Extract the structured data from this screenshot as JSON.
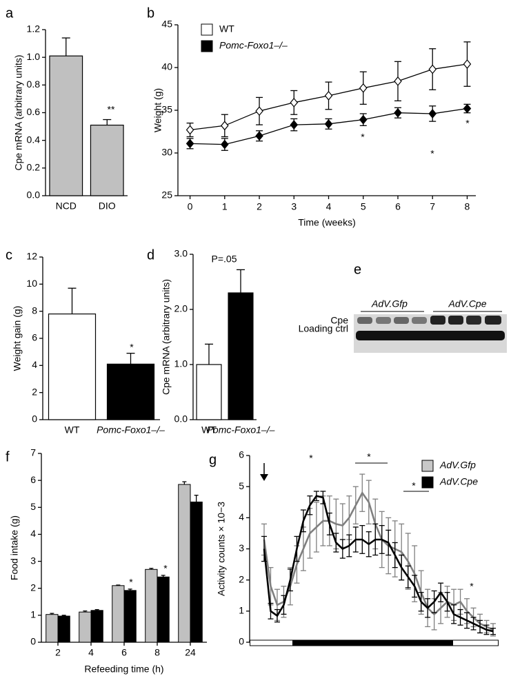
{
  "chart_data": [
    {
      "panel": "a",
      "type": "bar",
      "ylabel": "Cpe mRNA (arbitrary units)",
      "categories": [
        "NCD",
        "DIO"
      ],
      "values": [
        1.01,
        0.51
      ],
      "errors": [
        0.13,
        0.04
      ],
      "color": "#c0c0c0",
      "ylim": [
        0,
        1.2
      ],
      "yticks": [
        {
          "value": 0,
          "label": "0.0"
        },
        0.2,
        0.4,
        0.6,
        0.8,
        {
          "value": 1,
          "label": "1.0"
        },
        1.2
      ],
      "annotations": [
        "**"
      ]
    },
    {
      "panel": "b",
      "type": "line",
      "xlabel": "Time (weeks)",
      "ylabel": "Weight (g)",
      "x": [
        0,
        1,
        2,
        3,
        4,
        5,
        6,
        7,
        8
      ],
      "series": [
        {
          "name": "WT",
          "color": "#ffffff",
          "values": [
            32.7,
            33.2,
            34.9,
            35.9,
            36.7,
            37.6,
            38.4,
            39.8,
            40.4
          ],
          "errors": [
            0.8,
            1.3,
            1.6,
            1.4,
            1.6,
            1.9,
            2.3,
            2.4,
            2.6
          ]
        },
        {
          "name": "Pomc-Foxo1–/–",
          "color": "#000000",
          "values": [
            31.1,
            31.0,
            32.0,
            33.3,
            33.4,
            33.9,
            34.7,
            34.6,
            35.2
          ],
          "errors": [
            0.6,
            0.7,
            0.6,
            0.7,
            0.6,
            0.7,
            0.6,
            0.9,
            0.5
          ]
        }
      ],
      "xlim": [
        -0.35,
        8.25
      ],
      "xticks": [
        0,
        1,
        2,
        3,
        4,
        5,
        6,
        7,
        8
      ],
      "ylim": [
        25,
        45
      ],
      "yticks": [
        25,
        30,
        35,
        40,
        45
      ],
      "legend": "top-left",
      "annotations": [
        "*",
        "*",
        "*"
      ]
    },
    {
      "panel": "c",
      "type": "bar",
      "ylabel": "Weight gain (g)",
      "categories": [
        "WT",
        "Pomc-Foxo1–/–"
      ],
      "values": [
        7.8,
        4.1
      ],
      "errors": [
        1.9,
        0.8
      ],
      "colors": [
        "#ffffff",
        "#000000"
      ],
      "ylim": [
        0,
        12
      ],
      "yticks": [
        0,
        2,
        4,
        6,
        8,
        10,
        12
      ],
      "annotations": [
        "*"
      ]
    },
    {
      "panel": "d",
      "type": "bar",
      "ylabel": "Cpe mRNA  (arbitrary units)",
      "categories": [
        "WT",
        "Pomc-Foxo1–/–"
      ],
      "values": [
        1.0,
        2.3
      ],
      "errors": [
        0.37,
        0.42
      ],
      "colors": [
        "#ffffff",
        "#000000"
      ],
      "ylim": [
        0,
        3
      ],
      "yticks": [
        {
          "value": 0,
          "label": "0.0"
        },
        {
          "value": 1,
          "label": "1.0"
        },
        {
          "value": 2,
          "label": "2.0"
        },
        {
          "value": 3,
          "label": "3.0"
        }
      ],
      "annotations": [
        "P=.05"
      ]
    },
    {
      "panel": "f",
      "type": "bar",
      "xlabel": "Refeeding time (h)",
      "ylabel": "Food intake (g)",
      "categories": [
        "2",
        "4",
        "6",
        "8",
        "24"
      ],
      "series": [
        {
          "color": "#c0c0c0",
          "values": [
            1.03,
            1.12,
            2.1,
            2.7,
            5.85
          ],
          "errors": [
            0.04,
            0.04,
            0.02,
            0.04,
            0.1
          ]
        },
        {
          "color": "#000000",
          "values": [
            0.97,
            1.18,
            1.92,
            2.42,
            5.2
          ],
          "errors": [
            0.03,
            0.03,
            0.05,
            0.06,
            0.25
          ]
        }
      ],
      "ylim": [
        0,
        7
      ],
      "yticks": [
        0,
        1,
        2,
        3,
        4,
        5,
        6,
        7
      ],
      "annotations": [
        "*",
        "*"
      ]
    },
    {
      "panel": "g",
      "type": "line",
      "ylabel": "Activity counts × 10−3",
      "categories": [
        null,
        null,
        null,
        null,
        null,
        null,
        null,
        null,
        null,
        null,
        null,
        null,
        null,
        null,
        null,
        null,
        null,
        null,
        null,
        null,
        null,
        null,
        null,
        null,
        null,
        null,
        null,
        null,
        null,
        null,
        null,
        null,
        null,
        null,
        null,
        null
      ],
      "series": [
        {
          "name": "AdV.Gfp",
          "color": "#7f7f7f",
          "values": [
            3.3,
            1.8,
            1.2,
            1.3,
            1.8,
            2.5,
            3.0,
            3.5,
            3.7,
            3.9,
            3.9,
            3.8,
            3.75,
            4.0,
            4.4,
            4.8,
            4.5,
            3.8,
            3.3,
            3.1,
            3.0,
            2.9,
            2.6,
            2.2,
            1.6,
            1.1,
            0.9,
            1.1,
            1.3,
            1.2,
            1.3,
            1.0,
            0.8,
            0.6,
            0.5,
            0.4
          ],
          "errors": [
            0.5,
            0.6,
            0.5,
            0.5,
            0.6,
            0.6,
            0.7,
            0.8,
            0.8,
            0.8,
            0.8,
            0.8,
            0.7,
            0.7,
            0.6,
            0.6,
            0.7,
            0.8,
            0.9,
            0.9,
            0.9,
            0.9,
            0.9,
            0.9,
            0.7,
            0.6,
            0.5,
            0.5,
            0.5,
            0.5,
            0.4,
            0.4,
            0.3,
            0.3,
            0.2,
            0.2
          ]
        },
        {
          "name": "AdV.Cpe",
          "color": "#000000",
          "values": [
            3.0,
            1.0,
            0.85,
            1.2,
            2.0,
            3.0,
            3.9,
            4.4,
            4.7,
            4.65,
            3.8,
            3.2,
            3.0,
            3.1,
            3.3,
            3.3,
            3.15,
            3.3,
            3.3,
            3.2,
            2.8,
            2.4,
            2.1,
            1.8,
            1.3,
            1.1,
            1.3,
            1.6,
            1.3,
            0.9,
            0.8,
            0.7,
            0.6,
            0.5,
            0.4,
            0.35
          ],
          "errors": [
            0.4,
            0.25,
            0.2,
            0.3,
            0.35,
            0.4,
            0.35,
            0.3,
            0.15,
            0.2,
            0.35,
            0.3,
            0.3,
            0.35,
            0.4,
            0.45,
            0.4,
            0.5,
            0.45,
            0.4,
            0.4,
            0.4,
            0.35,
            0.35,
            0.3,
            0.3,
            0.35,
            0.3,
            0.3,
            0.3,
            0.25,
            0.25,
            0.2,
            0.2,
            0.15,
            0.1
          ]
        }
      ],
      "ylim": [
        0,
        6
      ],
      "yticks": [
        0,
        1,
        2,
        3,
        4,
        5,
        6
      ],
      "legend": "top-right",
      "annotations": [
        "*",
        "*",
        "*",
        "*"
      ]
    }
  ],
  "blot": {
    "panel": "e",
    "lanes": [
      "AdV.Gfp",
      "AdV.Cpe"
    ],
    "rows": [
      "Cpe",
      "Loading ctrl"
    ]
  }
}
